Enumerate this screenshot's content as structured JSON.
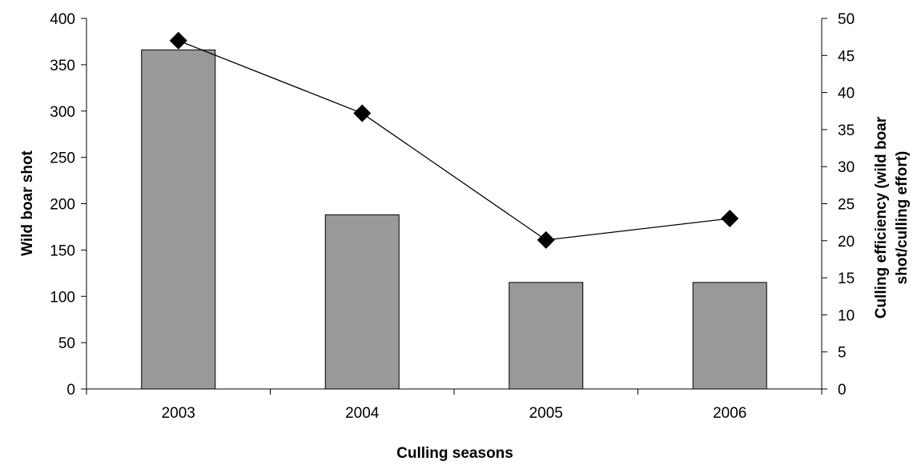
{
  "chart_data": {
    "type": "bar",
    "categories": [
      "2003",
      "2004",
      "2005",
      "2006"
    ],
    "series": [
      {
        "type": "bar",
        "axis": "left",
        "values": [
          366,
          188,
          115,
          115
        ],
        "color": "#999999"
      },
      {
        "type": "line",
        "axis": "right",
        "marker": "diamond",
        "values": [
          47,
          37.2,
          20.1,
          23
        ],
        "color": "#000000"
      }
    ],
    "xlabel": "Culling seasons",
    "ylabel": "Wild boar shot",
    "y2label_lines": [
      "Culling efficiency (wild boar",
      "shot/culling effort)"
    ],
    "ylim": [
      0,
      400
    ],
    "y2lim": [
      0,
      50
    ],
    "yticks": [
      0,
      50,
      100,
      150,
      200,
      250,
      300,
      350,
      400
    ],
    "y2ticks": [
      0,
      5,
      10,
      15,
      20,
      25,
      30,
      35,
      40,
      45,
      50
    ],
    "grid": false,
    "legend": "none"
  }
}
